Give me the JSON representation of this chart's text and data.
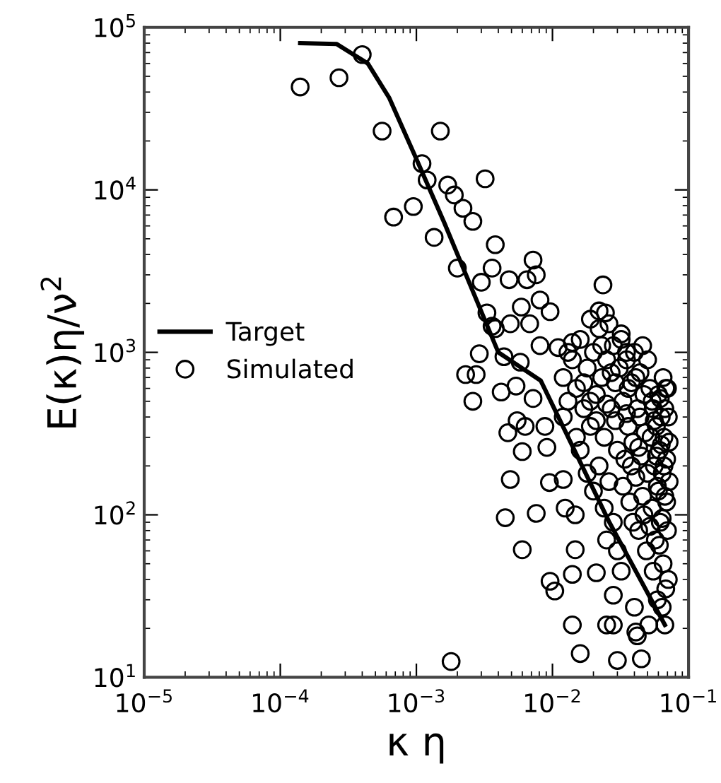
{
  "chart_data": {
    "type": "scatter",
    "xlabel": "κ η",
    "ylabel": "E(κ)η/ν$^{2}$",
    "log": "xy",
    "xlim": [
      1e-05,
      0.1
    ],
    "ylim": [
      10,
      100000
    ],
    "xticks": [
      {
        "value": 1e-05,
        "label": "10$^{−5}$"
      },
      {
        "value": 0.0001,
        "label": "10$^{−4}$"
      },
      {
        "value": 0.001,
        "label": "10$^{−3}$"
      },
      {
        "value": 0.01,
        "label": "10$^{−2}$"
      },
      {
        "value": 0.1,
        "label": "10$^{−1}$"
      }
    ],
    "yticks": [
      {
        "value": 10,
        "label": "10$^{1}$"
      },
      {
        "value": 100,
        "label": "10$^{2}$"
      },
      {
        "value": 1000,
        "label": "10$^{3}$"
      },
      {
        "value": 10000,
        "label": "10$^{4}$"
      },
      {
        "value": 100000,
        "label": "10$^{5}$"
      }
    ],
    "grid": false,
    "legend": "left",
    "series": [
      {
        "name": "Target",
        "type": "line",
        "color": "#000000",
        "line_style": "solid",
        "marker": "none",
        "x": [
          0.00014,
          0.00026,
          0.00044,
          0.00063,
          0.001,
          0.0016,
          0.004,
          0.0082,
          0.026,
          0.067
        ],
        "values": [
          80000,
          79000,
          60000,
          37000,
          15500,
          6300,
          1000,
          670,
          91,
          21
        ]
      },
      {
        "name": "Simulated",
        "color": "#000000",
        "marker": "circle",
        "x": [
          0.00014,
          0.00027,
          0.0004,
          0.00056,
          0.0015,
          0.00068,
          0.00095,
          0.0011,
          0.0012,
          0.00135,
          0.0017,
          0.0019,
          0.0022,
          0.0026,
          0.0032,
          0.002,
          0.003,
          0.0036,
          0.0038,
          0.0033,
          0.0036,
          0.0029,
          0.0023,
          0.00275,
          0.0048,
          0.0065,
          0.0072,
          0.0076,
          0.0081,
          0.0096,
          0.0059,
          0.0049,
          0.0038,
          0.0068,
          0.0081,
          0.0026,
          0.0044,
          0.0058,
          0.0042,
          0.0054,
          0.0072,
          0.0047,
          0.0055,
          0.0063,
          0.006,
          0.0049,
          0.0045,
          0.0076,
          0.006,
          0.0095,
          0.012,
          0.0088,
          0.0091,
          0.0124,
          0.0147,
          0.0096,
          0.0104,
          0.014,
          0.0147,
          0.014,
          0.016,
          0.0018,
          0.03,
          0.045,
          0.025,
          0.028,
          0.041,
          0.0235,
          0.022,
          0.0245,
          0.019,
          0.032,
          0.035,
          0.014,
          0.011,
          0.021,
          0.028,
          0.042,
          0.04,
          0.051,
          0.067,
          0.064,
          0.012,
          0.013,
          0.014,
          0.015,
          0.016,
          0.017,
          0.018,
          0.019,
          0.02,
          0.021,
          0.022,
          0.023,
          0.024,
          0.025,
          0.026,
          0.027,
          0.028,
          0.029,
          0.03,
          0.031,
          0.012,
          0.013,
          0.015,
          0.017,
          0.019,
          0.021,
          0.023,
          0.025,
          0.027,
          0.029,
          0.032,
          0.033,
          0.034,
          0.035,
          0.036,
          0.037,
          0.038,
          0.039,
          0.04,
          0.041,
          0.042,
          0.043,
          0.044,
          0.045,
          0.046,
          0.047,
          0.048,
          0.049,
          0.05,
          0.05,
          0.033,
          0.036,
          0.039,
          0.041,
          0.044,
          0.047,
          0.035,
          0.038,
          0.043,
          0.046,
          0.052,
          0.053,
          0.054,
          0.055,
          0.056,
          0.057,
          0.058,
          0.059,
          0.06,
          0.061,
          0.062,
          0.063,
          0.064,
          0.065,
          0.066,
          0.067,
          0.068,
          0.069,
          0.07,
          0.071,
          0.072,
          0.072,
          0.071,
          0.07,
          0.069,
          0.068,
          0.067,
          0.066,
          0.065,
          0.064,
          0.063,
          0.062,
          0.061,
          0.06,
          0.058,
          0.056,
          0.054,
          0.052,
          0.055,
          0.059,
          0.016,
          0.018,
          0.02,
          0.022,
          0.024,
          0.026,
          0.028,
          0.03,
          0.025,
          0.032
        ],
        "values": [
          43000,
          49000,
          68000,
          23000,
          23000,
          6800,
          7900,
          14500,
          11500,
          5100,
          10700,
          9300,
          7700,
          6400,
          11700,
          3300,
          2700,
          3300,
          4600,
          1750,
          1450,
          980,
          730,
          730,
          2800,
          2800,
          3700,
          3000,
          2100,
          1780,
          1900,
          1500,
          1400,
          1500,
          1100,
          500,
          940,
          870,
          570,
          620,
          520,
          320,
          380,
          350,
          245,
          165,
          96,
          102,
          61,
          158,
          165,
          350,
          260,
          110,
          100,
          39,
          34,
          43,
          61,
          21,
          14,
          12.5,
          12.7,
          13,
          21,
          21,
          19,
          2600,
          1800,
          1750,
          1600,
          1300,
          1000,
          1150,
          1070,
          44,
          32,
          18,
          27,
          21,
          21,
          27,
          700,
          500,
          900,
          600,
          1200,
          450,
          800,
          350,
          1000,
          550,
          1400,
          700,
          300,
          900,
          1500,
          450,
          1100,
          650,
          250,
          800,
          400,
          1000,
          300,
          650,
          500,
          380,
          1100,
          480,
          750,
          380,
          1200,
          500,
          220,
          900,
          350,
          120,
          650,
          280,
          1000,
          170,
          450,
          80,
          750,
          230,
          130,
          550,
          320,
          60,
          900,
          180,
          150,
          600,
          90,
          700,
          400,
          100,
          420,
          200,
          260,
          1100,
          600,
          300,
          110,
          450,
          200,
          70,
          350,
          150,
          550,
          250,
          90,
          400,
          180,
          50,
          300,
          130,
          600,
          220,
          80,
          400,
          160,
          280,
          40,
          600,
          120,
          35,
          450,
          200,
          700,
          95,
          270,
          520,
          65,
          140,
          230,
          380,
          500,
          85,
          45,
          30,
          250,
          180,
          140,
          200,
          110,
          160,
          90,
          60,
          70,
          45
        ]
      }
    ]
  }
}
